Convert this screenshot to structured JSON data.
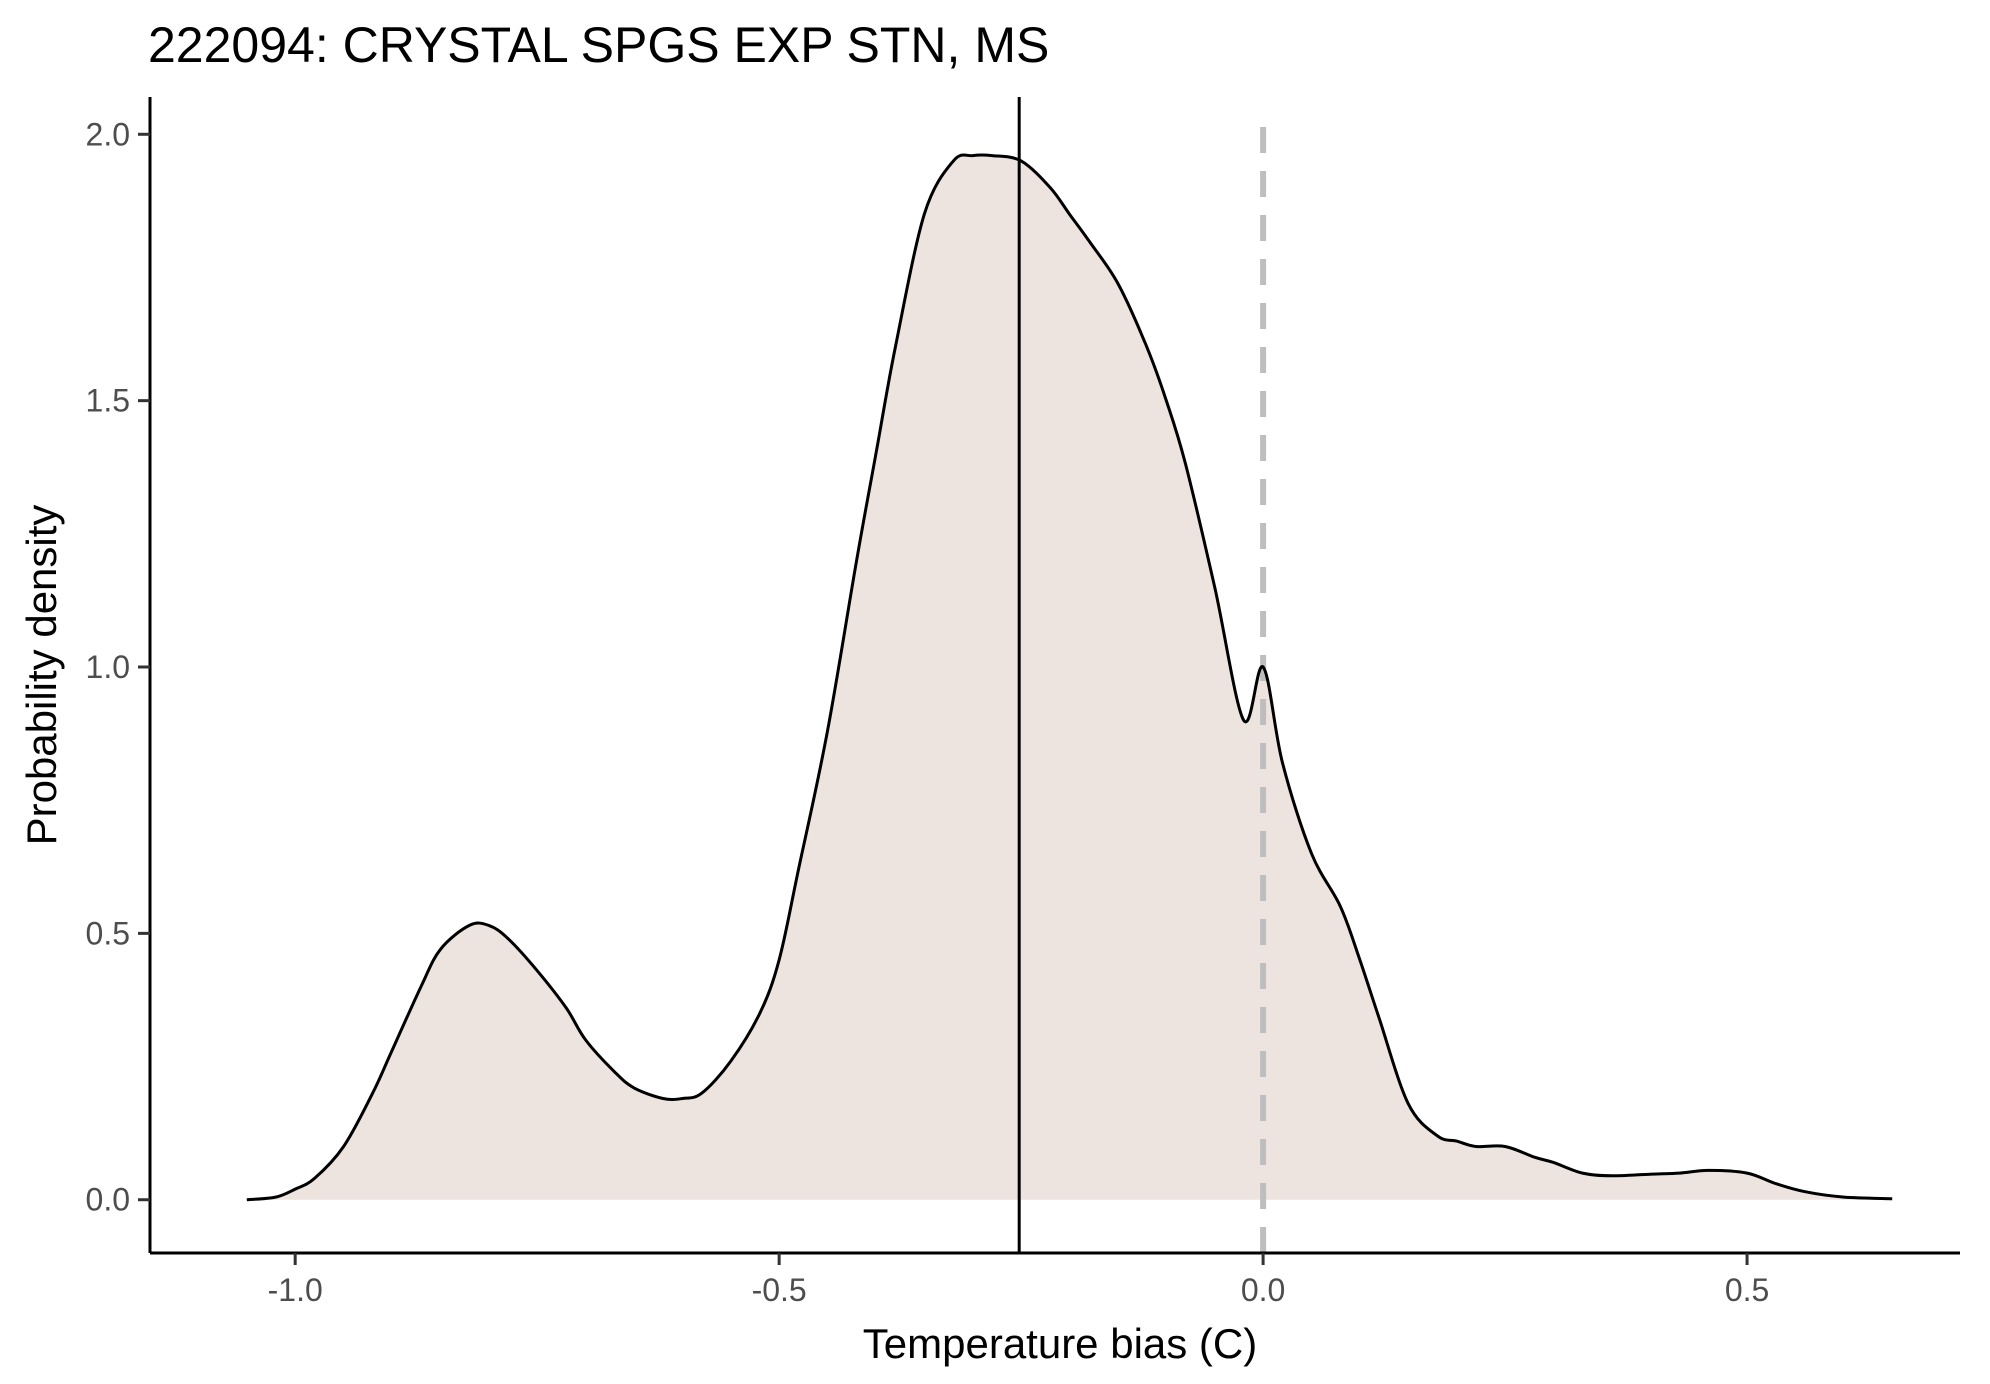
{
  "chart_data": {
    "type": "area",
    "title": "222094: CRYSTAL SPGS EXP STN, MS",
    "xlabel": "Temperature bias (C)",
    "ylabel": "Probability density",
    "xlim": [
      -1.15,
      0.72
    ],
    "ylim": [
      -0.1,
      2.07
    ],
    "x_ticks": [
      -1.0,
      -0.5,
      0.0,
      0.5
    ],
    "x_tick_labels": [
      "-1.0",
      "-0.5",
      "0.0",
      "0.5"
    ],
    "y_ticks": [
      0.0,
      0.5,
      1.0,
      1.5,
      2.0
    ],
    "y_tick_labels": [
      "0.0",
      "0.5",
      "1.0",
      "1.5",
      "2.0"
    ],
    "grid": false,
    "legend": "none",
    "fill_color": "#ede3df",
    "line_color": "#000000",
    "mean_line": {
      "x": -0.252,
      "color": "#000000",
      "style": "solid"
    },
    "zero_line": {
      "x": 0.0,
      "color": "#bebebe",
      "style": "dashed"
    },
    "series": [
      {
        "x": [
          -1.05,
          -1.02,
          -1.0,
          -0.98,
          -0.95,
          -0.92,
          -0.9,
          -0.87,
          -0.85,
          -0.82,
          -0.8,
          -0.78,
          -0.75,
          -0.72,
          -0.7,
          -0.67,
          -0.65,
          -0.62,
          -0.6,
          -0.58,
          -0.55,
          -0.52,
          -0.5,
          -0.48,
          -0.45,
          -0.42,
          -0.4,
          -0.38,
          -0.35,
          -0.32,
          -0.3,
          -0.28,
          -0.25,
          -0.22,
          -0.2,
          -0.18,
          -0.15,
          -0.12,
          -0.1,
          -0.08,
          -0.05,
          -0.02,
          0.0,
          0.02,
          0.05,
          0.08,
          0.1,
          0.12,
          0.15,
          0.18,
          0.2,
          0.22,
          0.25,
          0.28,
          0.3,
          0.33,
          0.36,
          0.4,
          0.43,
          0.46,
          0.5,
          0.53,
          0.56,
          0.6,
          0.65
        ],
        "y": [
          0.0,
          0.005,
          0.02,
          0.04,
          0.1,
          0.2,
          0.28,
          0.4,
          0.47,
          0.515,
          0.515,
          0.49,
          0.43,
          0.36,
          0.3,
          0.24,
          0.21,
          0.19,
          0.19,
          0.2,
          0.26,
          0.35,
          0.45,
          0.62,
          0.88,
          1.2,
          1.4,
          1.6,
          1.85,
          1.95,
          1.96,
          1.96,
          1.95,
          1.9,
          1.85,
          1.8,
          1.72,
          1.6,
          1.5,
          1.38,
          1.15,
          0.9,
          1.0,
          0.82,
          0.65,
          0.55,
          0.45,
          0.34,
          0.18,
          0.12,
          0.11,
          0.1,
          0.1,
          0.08,
          0.07,
          0.05,
          0.045,
          0.048,
          0.05,
          0.055,
          0.05,
          0.03,
          0.015,
          0.005,
          0.002
        ]
      }
    ]
  }
}
